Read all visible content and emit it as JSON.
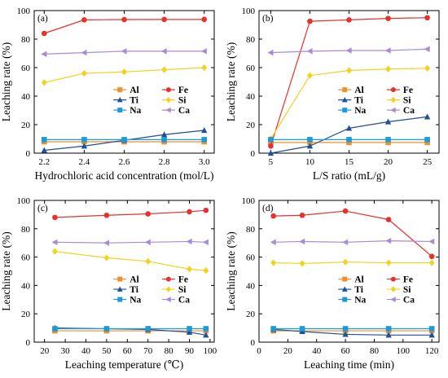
{
  "series_styles": [
    {
      "name": "Al",
      "color": "#F28E2B",
      "marker": "square"
    },
    {
      "name": "Fe",
      "color": "#E8302C",
      "marker": "circle"
    },
    {
      "name": "Ti",
      "color": "#1F4E9B",
      "marker": "triangle"
    },
    {
      "name": "Si",
      "color": "#F2D21F",
      "marker": "diamond"
    },
    {
      "name": "Na",
      "color": "#1E9BD7",
      "marker": "square"
    },
    {
      "name": "Ca",
      "color": "#A98BD4",
      "marker": "triangle-left"
    }
  ],
  "chart_data": [
    {
      "type": "line",
      "panel_label": "(a)",
      "xlabel": "Hydrochloric acid concentration (mol/L)",
      "ylabel": "Leaching rate (%)",
      "xlim": [
        2.15,
        3.05
      ],
      "ylim": [
        0,
        100
      ],
      "xticks": [
        "2.2",
        "2.4",
        "2.6",
        "2.8",
        "3.0"
      ],
      "xtick_values": [
        2.2,
        2.4,
        2.6,
        2.8,
        3.0
      ],
      "yticks": [
        "0",
        "20",
        "40",
        "60",
        "80",
        "100"
      ],
      "ytick_values": [
        0,
        20,
        40,
        60,
        80,
        100
      ],
      "x": [
        2.2,
        2.4,
        2.6,
        2.8,
        3.0
      ],
      "series": [
        {
          "name": "Al",
          "values": [
            8,
            8,
            8,
            8,
            8
          ]
        },
        {
          "name": "Fe",
          "values": [
            84,
            93.5,
            93.7,
            93.8,
            93.8
          ]
        },
        {
          "name": "Ti",
          "values": [
            2,
            5,
            9,
            13,
            16
          ]
        },
        {
          "name": "Si",
          "values": [
            49.5,
            56,
            57,
            58.5,
            60
          ]
        },
        {
          "name": "Na",
          "values": [
            9.5,
            9.5,
            9.5,
            9.5,
            9.5
          ]
        },
        {
          "name": "Ca",
          "values": [
            69.5,
            70.5,
            71.5,
            71.5,
            71.5
          ]
        }
      ],
      "legend": {
        "labels": [
          "Al",
          "Fe",
          "Ti",
          "Si",
          "Na",
          "Ca"
        ],
        "placement": "center-right"
      }
    },
    {
      "type": "line",
      "panel_label": "(b)",
      "xlabel": "L/S ratio (mL/g)",
      "ylabel": "Leaching rate (%)",
      "xlim": [
        3.5,
        26.5
      ],
      "ylim": [
        0,
        100
      ],
      "xticks": [
        "5",
        "10",
        "15",
        "20",
        "25"
      ],
      "xtick_values": [
        5,
        10,
        15,
        20,
        25
      ],
      "yticks": [
        "0",
        "20",
        "40",
        "60",
        "80",
        "100"
      ],
      "ytick_values": [
        0,
        20,
        40,
        60,
        80,
        100
      ],
      "x": [
        5,
        10,
        15,
        20,
        25
      ],
      "series": [
        {
          "name": "Al",
          "values": [
            7.5,
            7.5,
            7.5,
            7.5,
            7.5
          ]
        },
        {
          "name": "Fe",
          "values": [
            5,
            92.5,
            93.5,
            94.5,
            95
          ]
        },
        {
          "name": "Ti",
          "values": [
            0,
            5,
            17.5,
            22,
            25.5
          ]
        },
        {
          "name": "Si",
          "values": [
            10,
            54.5,
            58,
            59,
            59.5
          ]
        },
        {
          "name": "Na",
          "values": [
            9.5,
            9.5,
            9.5,
            9.5,
            9.5
          ]
        },
        {
          "name": "Ca",
          "values": [
            70.5,
            71.5,
            72,
            72,
            73
          ]
        }
      ],
      "legend": {
        "labels": [
          "Al",
          "Fe",
          "Ti",
          "Si",
          "Na",
          "Ca"
        ],
        "placement": "center-right"
      }
    },
    {
      "type": "line",
      "panel_label": "(c)",
      "xlabel": "Leaching temperature (℃)",
      "ylabel": "Leaching rate (%)",
      "xlim": [
        15,
        102
      ],
      "ylim": [
        0,
        100
      ],
      "xticks": [
        "20",
        "30",
        "40",
        "50",
        "60",
        "70",
        "80",
        "90",
        "100"
      ],
      "xtick_values": [
        20,
        30,
        40,
        50,
        60,
        70,
        80,
        90,
        100
      ],
      "yticks": [
        "0",
        "20",
        "40",
        "60",
        "80",
        "100"
      ],
      "ytick_values": [
        0,
        20,
        40,
        60,
        80,
        100
      ],
      "x": [
        25,
        50,
        70,
        90,
        98
      ],
      "series": [
        {
          "name": "Al",
          "values": [
            8,
            8,
            8,
            8,
            8
          ]
        },
        {
          "name": "Fe",
          "values": [
            88,
            89.5,
            90.5,
            92,
            93
          ]
        },
        {
          "name": "Ti",
          "values": [
            10,
            9.5,
            9,
            7,
            5
          ]
        },
        {
          "name": "Si",
          "values": [
            64,
            59.5,
            57,
            51.5,
            50.5
          ]
        },
        {
          "name": "Na",
          "values": [
            9.5,
            9.5,
            9.5,
            9.5,
            9.5
          ]
        },
        {
          "name": "Ca",
          "values": [
            70.5,
            70,
            70.5,
            71,
            70.5
          ]
        }
      ],
      "legend": {
        "labels": [
          "Al",
          "Fe",
          "Ti",
          "Si",
          "Na",
          "Ca"
        ],
        "placement": "center-right"
      }
    },
    {
      "type": "line",
      "panel_label": "(d)",
      "xlabel": "Leaching time (min)",
      "ylabel": "Leaching rate (%)",
      "xlim": [
        0,
        125
      ],
      "ylim": [
        0,
        100
      ],
      "xticks": [
        "0",
        "20",
        "40",
        "60",
        "80",
        "100",
        "120"
      ],
      "xtick_values": [
        0,
        20,
        40,
        60,
        80,
        100,
        120
      ],
      "yticks": [
        "0",
        "20",
        "40",
        "60",
        "80",
        "100"
      ],
      "ytick_values": [
        0,
        20,
        40,
        60,
        80,
        100
      ],
      "x": [
        10,
        30,
        60,
        90,
        120
      ],
      "series": [
        {
          "name": "Al",
          "values": [
            8,
            8,
            8,
            8,
            8
          ]
        },
        {
          "name": "Fe",
          "values": [
            89,
            89.5,
            92.5,
            86.5,
            60.5
          ]
        },
        {
          "name": "Ti",
          "values": [
            9,
            7.5,
            5.5,
            5,
            5
          ]
        },
        {
          "name": "Si",
          "values": [
            56,
            55.5,
            56.5,
            56,
            56
          ]
        },
        {
          "name": "Na",
          "values": [
            9.5,
            9.5,
            9.5,
            9.5,
            9.5
          ]
        },
        {
          "name": "Ca",
          "values": [
            70.5,
            71,
            70.5,
            71.5,
            71
          ]
        }
      ],
      "legend": {
        "labels": [
          "Al",
          "Fe",
          "Ti",
          "Si",
          "Na",
          "Ca"
        ],
        "placement": "center-right"
      }
    }
  ]
}
